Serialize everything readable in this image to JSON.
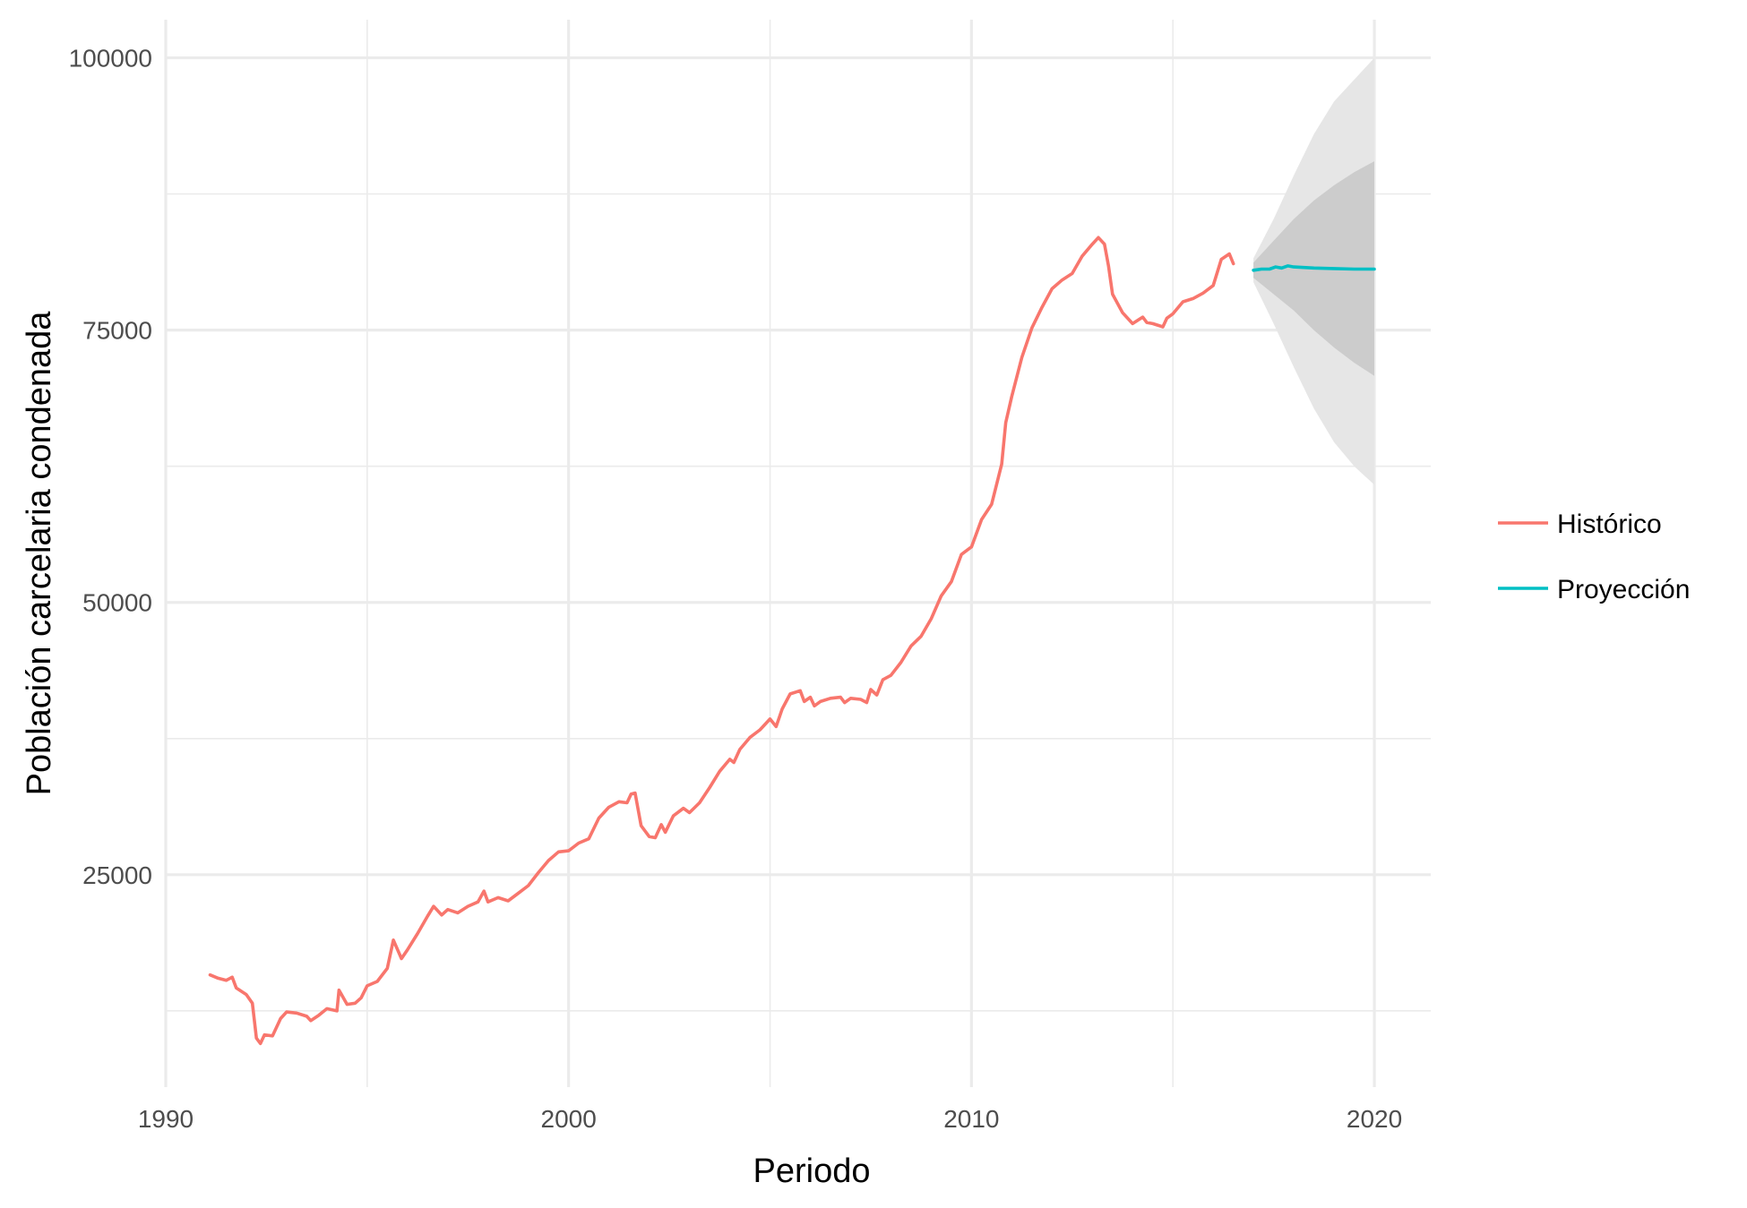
{
  "chart_data": {
    "type": "line",
    "title": "",
    "xlabel": "Periodo",
    "ylabel": "Población carcelaria condenada",
    "xlim": [
      1990,
      2021.4
    ],
    "ylim": [
      5500,
      103500
    ],
    "x_ticks": [
      1990,
      2000,
      2010,
      2020
    ],
    "x_tick_labels": [
      "1990",
      "2000",
      "2010",
      "2020"
    ],
    "x_minor_ticks": [
      1995,
      2005,
      2015
    ],
    "y_ticks": [
      25000,
      50000,
      75000,
      100000
    ],
    "y_tick_labels": [
      "25000",
      "50000",
      "75000",
      "100000"
    ],
    "y_minor_ticks": [
      12500,
      37500,
      62500,
      87500
    ],
    "grid": true,
    "legend": {
      "position": "right",
      "entries": [
        {
          "name": "Histórico",
          "color": "#F8766D"
        },
        {
          "name": "Proyección",
          "color": "#00BFC4"
        }
      ]
    },
    "series": [
      {
        "name": "Histórico",
        "color": "#F8766D",
        "points": [
          [
            1991.1,
            15800
          ],
          [
            1991.3,
            15500
          ],
          [
            1991.5,
            15300
          ],
          [
            1991.65,
            15600
          ],
          [
            1991.75,
            14600
          ],
          [
            1992.0,
            14000
          ],
          [
            1992.15,
            13200
          ],
          [
            1992.25,
            10000
          ],
          [
            1992.35,
            9500
          ],
          [
            1992.45,
            10300
          ],
          [
            1992.65,
            10200
          ],
          [
            1992.85,
            11800
          ],
          [
            1993.0,
            12400
          ],
          [
            1993.25,
            12300
          ],
          [
            1993.5,
            12000
          ],
          [
            1993.6,
            11600
          ],
          [
            1993.8,
            12100
          ],
          [
            1994.0,
            12700
          ],
          [
            1994.25,
            12500
          ],
          [
            1994.3,
            14400
          ],
          [
            1994.5,
            13100
          ],
          [
            1994.7,
            13200
          ],
          [
            1994.85,
            13700
          ],
          [
            1995.0,
            14800
          ],
          [
            1995.25,
            15200
          ],
          [
            1995.5,
            16400
          ],
          [
            1995.65,
            19000
          ],
          [
            1995.85,
            17300
          ],
          [
            1996.0,
            18100
          ],
          [
            1996.25,
            19600
          ],
          [
            1996.5,
            21200
          ],
          [
            1996.65,
            22100
          ],
          [
            1996.85,
            21300
          ],
          [
            1997.0,
            21800
          ],
          [
            1997.25,
            21500
          ],
          [
            1997.5,
            22100
          ],
          [
            1997.75,
            22500
          ],
          [
            1997.9,
            23500
          ],
          [
            1998.0,
            22500
          ],
          [
            1998.25,
            22900
          ],
          [
            1998.5,
            22600
          ],
          [
            1998.75,
            23300
          ],
          [
            1999.0,
            24000
          ],
          [
            1999.25,
            25200
          ],
          [
            1999.5,
            26300
          ],
          [
            1999.75,
            27100
          ],
          [
            2000.0,
            27200
          ],
          [
            2000.25,
            27900
          ],
          [
            2000.5,
            28300
          ],
          [
            2000.75,
            30200
          ],
          [
            2001.0,
            31200
          ],
          [
            2001.25,
            31700
          ],
          [
            2001.45,
            31600
          ],
          [
            2001.55,
            32400
          ],
          [
            2001.65,
            32500
          ],
          [
            2001.8,
            29500
          ],
          [
            2002.0,
            28500
          ],
          [
            2002.15,
            28400
          ],
          [
            2002.3,
            29600
          ],
          [
            2002.4,
            28900
          ],
          [
            2002.6,
            30400
          ],
          [
            2002.85,
            31100
          ],
          [
            2003.0,
            30700
          ],
          [
            2003.25,
            31600
          ],
          [
            2003.5,
            33000
          ],
          [
            2003.75,
            34500
          ],
          [
            2004.0,
            35600
          ],
          [
            2004.1,
            35300
          ],
          [
            2004.25,
            36500
          ],
          [
            2004.5,
            37600
          ],
          [
            2004.75,
            38300
          ],
          [
            2005.0,
            39300
          ],
          [
            2005.15,
            38600
          ],
          [
            2005.3,
            40200
          ],
          [
            2005.5,
            41600
          ],
          [
            2005.75,
            41900
          ],
          [
            2005.85,
            40900
          ],
          [
            2006.0,
            41300
          ],
          [
            2006.1,
            40500
          ],
          [
            2006.25,
            40900
          ],
          [
            2006.5,
            41200
          ],
          [
            2006.75,
            41300
          ],
          [
            2006.85,
            40800
          ],
          [
            2007.0,
            41200
          ],
          [
            2007.25,
            41100
          ],
          [
            2007.4,
            40800
          ],
          [
            2007.5,
            42000
          ],
          [
            2007.65,
            41500
          ],
          [
            2007.8,
            42900
          ],
          [
            2008.0,
            43300
          ],
          [
            2008.25,
            44500
          ],
          [
            2008.5,
            46000
          ],
          [
            2008.75,
            46900
          ],
          [
            2009.0,
            48500
          ],
          [
            2009.25,
            50600
          ],
          [
            2009.5,
            51900
          ],
          [
            2009.75,
            54400
          ],
          [
            2010.0,
            55100
          ],
          [
            2010.25,
            57600
          ],
          [
            2010.5,
            59000
          ],
          [
            2010.75,
            62700
          ],
          [
            2010.85,
            66500
          ],
          [
            2011.0,
            68900
          ],
          [
            2011.25,
            72500
          ],
          [
            2011.5,
            75200
          ],
          [
            2011.75,
            77100
          ],
          [
            2012.0,
            78800
          ],
          [
            2012.25,
            79600
          ],
          [
            2012.5,
            80200
          ],
          [
            2012.75,
            81800
          ],
          [
            2013.0,
            82900
          ],
          [
            2013.15,
            83500
          ],
          [
            2013.3,
            82900
          ],
          [
            2013.4,
            80900
          ],
          [
            2013.5,
            78300
          ],
          [
            2013.75,
            76600
          ],
          [
            2014.0,
            75600
          ],
          [
            2014.25,
            76200
          ],
          [
            2014.35,
            75700
          ],
          [
            2014.5,
            75600
          ],
          [
            2014.75,
            75300
          ],
          [
            2014.85,
            76100
          ],
          [
            2015.0,
            76500
          ],
          [
            2015.25,
            77600
          ],
          [
            2015.5,
            77900
          ],
          [
            2015.75,
            78400
          ],
          [
            2016.0,
            79100
          ],
          [
            2016.2,
            81500
          ],
          [
            2016.4,
            82000
          ],
          [
            2016.5,
            81100
          ]
        ]
      },
      {
        "name": "Proyección",
        "color": "#00BFC4",
        "points": [
          [
            2017.0,
            80500
          ],
          [
            2017.2,
            80600
          ],
          [
            2017.4,
            80600
          ],
          [
            2017.55,
            80800
          ],
          [
            2017.7,
            80700
          ],
          [
            2017.85,
            80900
          ],
          [
            2018.0,
            80800
          ],
          [
            2018.5,
            80700
          ],
          [
            2019.0,
            80650
          ],
          [
            2019.5,
            80600
          ],
          [
            2020.0,
            80600
          ]
        ],
        "interval_80": {
          "x": [
            2017.0,
            2017.5,
            2018.0,
            2018.5,
            2019.0,
            2019.5,
            2020.0
          ],
          "lower": [
            79800,
            78300,
            76800,
            75000,
            73400,
            72000,
            70800
          ],
          "upper": [
            81200,
            83200,
            85200,
            86900,
            88300,
            89500,
            90500
          ]
        },
        "interval_95": {
          "x": [
            2017.0,
            2017.5,
            2018.0,
            2018.5,
            2019.0,
            2019.5,
            2020.0
          ],
          "lower": [
            79400,
            75600,
            71600,
            67800,
            64700,
            62500,
            60800
          ],
          "upper": [
            81600,
            85200,
            89200,
            93000,
            96000,
            98000,
            100000
          ]
        }
      }
    ]
  }
}
